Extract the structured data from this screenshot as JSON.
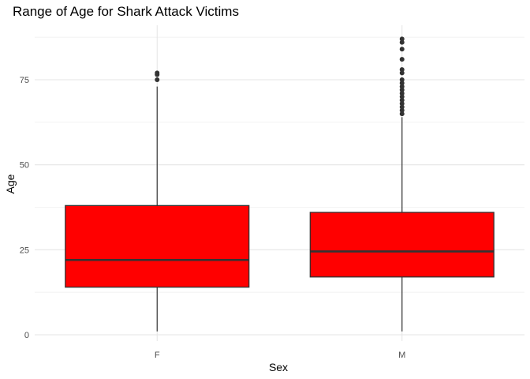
{
  "chart_data": {
    "type": "box",
    "title": "Range of Age for Shark Attack Victims",
    "xlabel": "Sex",
    "ylabel": "Age",
    "ylim": [
      -1,
      90
    ],
    "yticks": [
      0,
      25,
      50,
      75
    ],
    "grid": true,
    "legend": "none",
    "fill_color": "#ff0000",
    "outline_color": "#333333",
    "categories": [
      "F",
      "M"
    ],
    "boxes": [
      {
        "category": "F",
        "whisker_low": 1,
        "q1": 14,
        "median": 22,
        "q3": 38,
        "whisker_high": 73,
        "outliers": [
          75,
          76.5,
          77
        ]
      },
      {
        "category": "M",
        "whisker_low": 1,
        "q1": 17,
        "median": 24.5,
        "q3": 36,
        "whisker_high": 64,
        "outliers": [
          65,
          66,
          67,
          68,
          69,
          70,
          71,
          72,
          73,
          74,
          75,
          77,
          78,
          81,
          84,
          86,
          87
        ]
      }
    ]
  }
}
